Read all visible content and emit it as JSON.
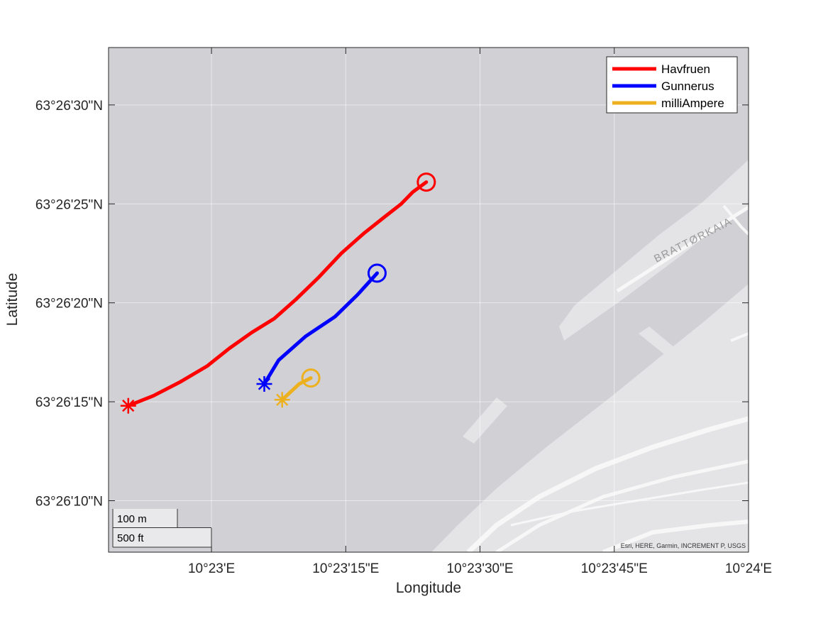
{
  "chart_data": {
    "type": "map",
    "xlabel": "Longitude",
    "ylabel": "Latitude",
    "x_ticks": [
      "10°23'E",
      "10°23'15\"E",
      "10°23'30\"E",
      "10°23'45\"E",
      "10°24'E"
    ],
    "y_ticks": [
      "63°26'30\"N",
      "63°26'25\"N",
      "63°26'20\"N",
      "63°26'15\"N",
      "63°26'10\"N"
    ],
    "x_tick_values_sec": [
      0,
      15,
      30,
      45,
      60
    ],
    "y_tick_values_sec": [
      30,
      25,
      20,
      15,
      10
    ],
    "xlim_sec": [
      -11.5,
      60
    ],
    "ylim_sec": [
      7.4,
      32.9
    ],
    "grid": true,
    "legend_position": "top-right",
    "series": [
      {
        "name": "Havfruen",
        "color": "#ff0000",
        "start_marker": "asterisk",
        "end_marker": "circle",
        "points_sec": [
          [
            -9.3,
            14.8
          ],
          [
            -6.5,
            15.3
          ],
          [
            -3.5,
            16.0
          ],
          [
            -0.5,
            16.8
          ],
          [
            2.0,
            17.7
          ],
          [
            4.5,
            18.5
          ],
          [
            7.0,
            19.2
          ],
          [
            9.5,
            20.2
          ],
          [
            12.0,
            21.3
          ],
          [
            14.5,
            22.5
          ],
          [
            17.0,
            23.5
          ],
          [
            19.5,
            24.4
          ],
          [
            21.2,
            25.0
          ],
          [
            22.5,
            25.6
          ],
          [
            24.0,
            26.1
          ]
        ]
      },
      {
        "name": "Gunnerus",
        "color": "#0000ff",
        "start_marker": "asterisk",
        "end_marker": "circle",
        "points_sec": [
          [
            5.9,
            15.9
          ],
          [
            7.5,
            17.1
          ],
          [
            10.5,
            18.3
          ],
          [
            13.8,
            19.3
          ],
          [
            16.3,
            20.4
          ],
          [
            18.5,
            21.5
          ]
        ]
      },
      {
        "name": "milliAmpere",
        "color": "#edb120",
        "start_marker": "asterisk",
        "end_marker": "circle",
        "points_sec": [
          [
            7.9,
            15.1
          ],
          [
            9.8,
            15.9
          ],
          [
            11.1,
            16.2
          ]
        ]
      }
    ]
  },
  "map": {
    "street_label": "BRATTØRKAIA",
    "attribution": "Esri, HERE, Garmin, INCREMENT P, USGS"
  },
  "scalebar": {
    "metric_label": "100 m",
    "imperial_label": "500 ft"
  }
}
